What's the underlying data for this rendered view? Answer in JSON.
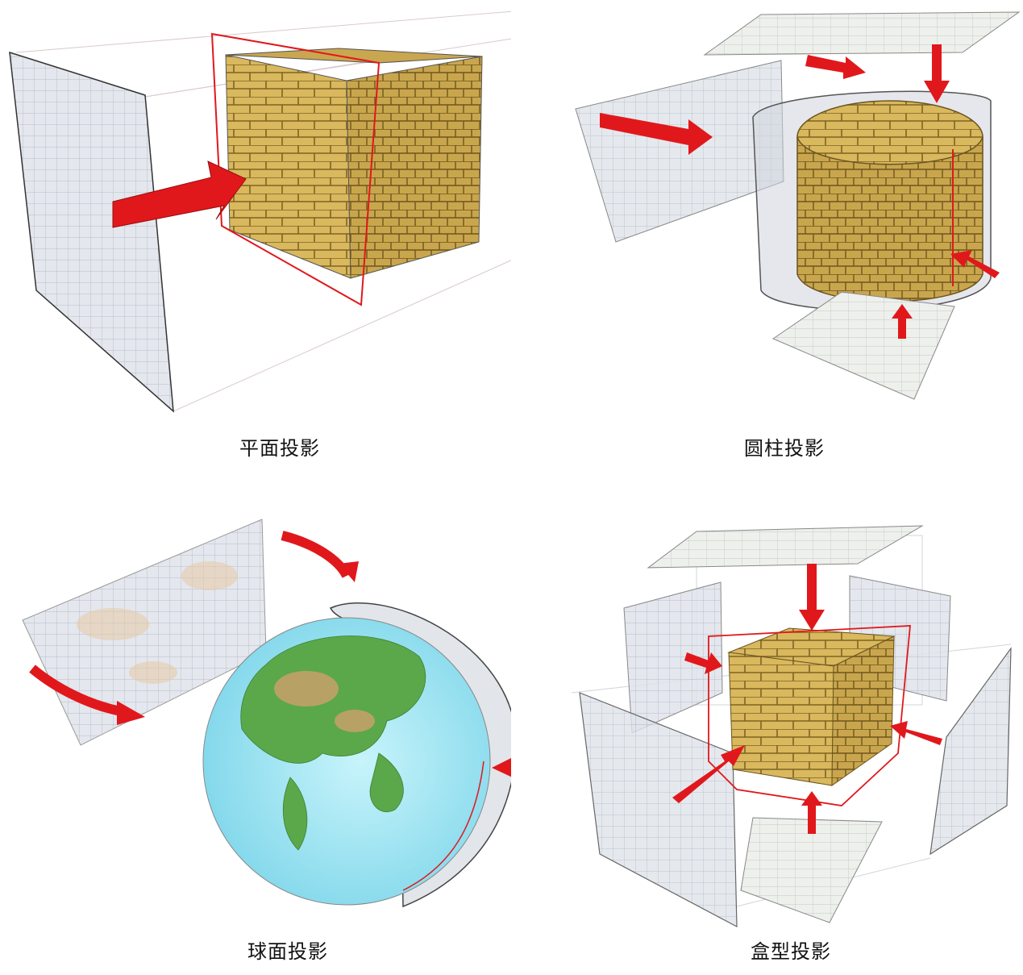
{
  "figure": {
    "panels": [
      {
        "caption": "平面投影"
      },
      {
        "caption": "圆柱投影"
      },
      {
        "caption": "球面投影"
      },
      {
        "caption": "盒型投影"
      }
    ]
  },
  "colors": {
    "arrow": "#e0181c",
    "brick_face": "#d9b85e",
    "brick_mortar": "#8a6f2a",
    "plane": "#dfe3ea",
    "plane_grid": "#9aa3b3",
    "frame_line": "#d22020",
    "globe_ocean": "#9fe3f2",
    "globe_land": "#5aa84a"
  }
}
